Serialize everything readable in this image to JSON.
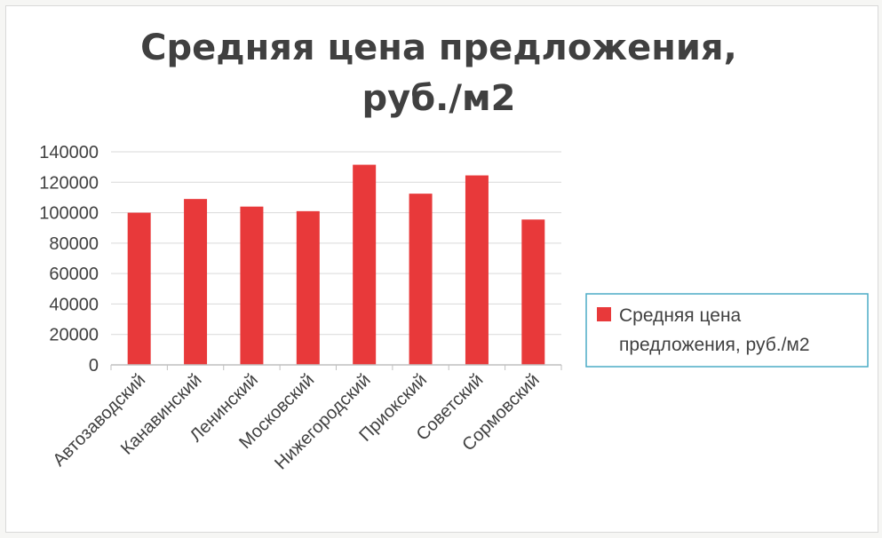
{
  "chart_data": {
    "type": "bar",
    "title": "Средняя цена предложения, руб./м2",
    "title_lines": [
      "Средняя цена предложения,",
      "руб./м2"
    ],
    "categories": [
      "Автозаводский",
      "Канавинский",
      "Ленинский",
      "Московский",
      "Нижегородский",
      "Приокский",
      "Советский",
      "Сормовский"
    ],
    "series": [
      {
        "name": "Средняя цена предложения, руб./м2",
        "legend_lines": [
          "Средняя цена",
          "предложения, руб./м2"
        ],
        "color": "#e8393a",
        "values": [
          100000,
          109000,
          104000,
          101000,
          131500,
          112500,
          124500,
          95500
        ]
      }
    ],
    "ylim": [
      0,
      140000
    ],
    "yticks": [
      0,
      20000,
      40000,
      60000,
      80000,
      100000,
      120000,
      140000
    ],
    "xlabel": "",
    "ylabel": "",
    "grid": true,
    "legend_position": "right"
  },
  "colors": {
    "bar": "#e8393a",
    "grid": "#d9d9d9",
    "text": "#404040",
    "legend_border": "#4bacc6"
  }
}
